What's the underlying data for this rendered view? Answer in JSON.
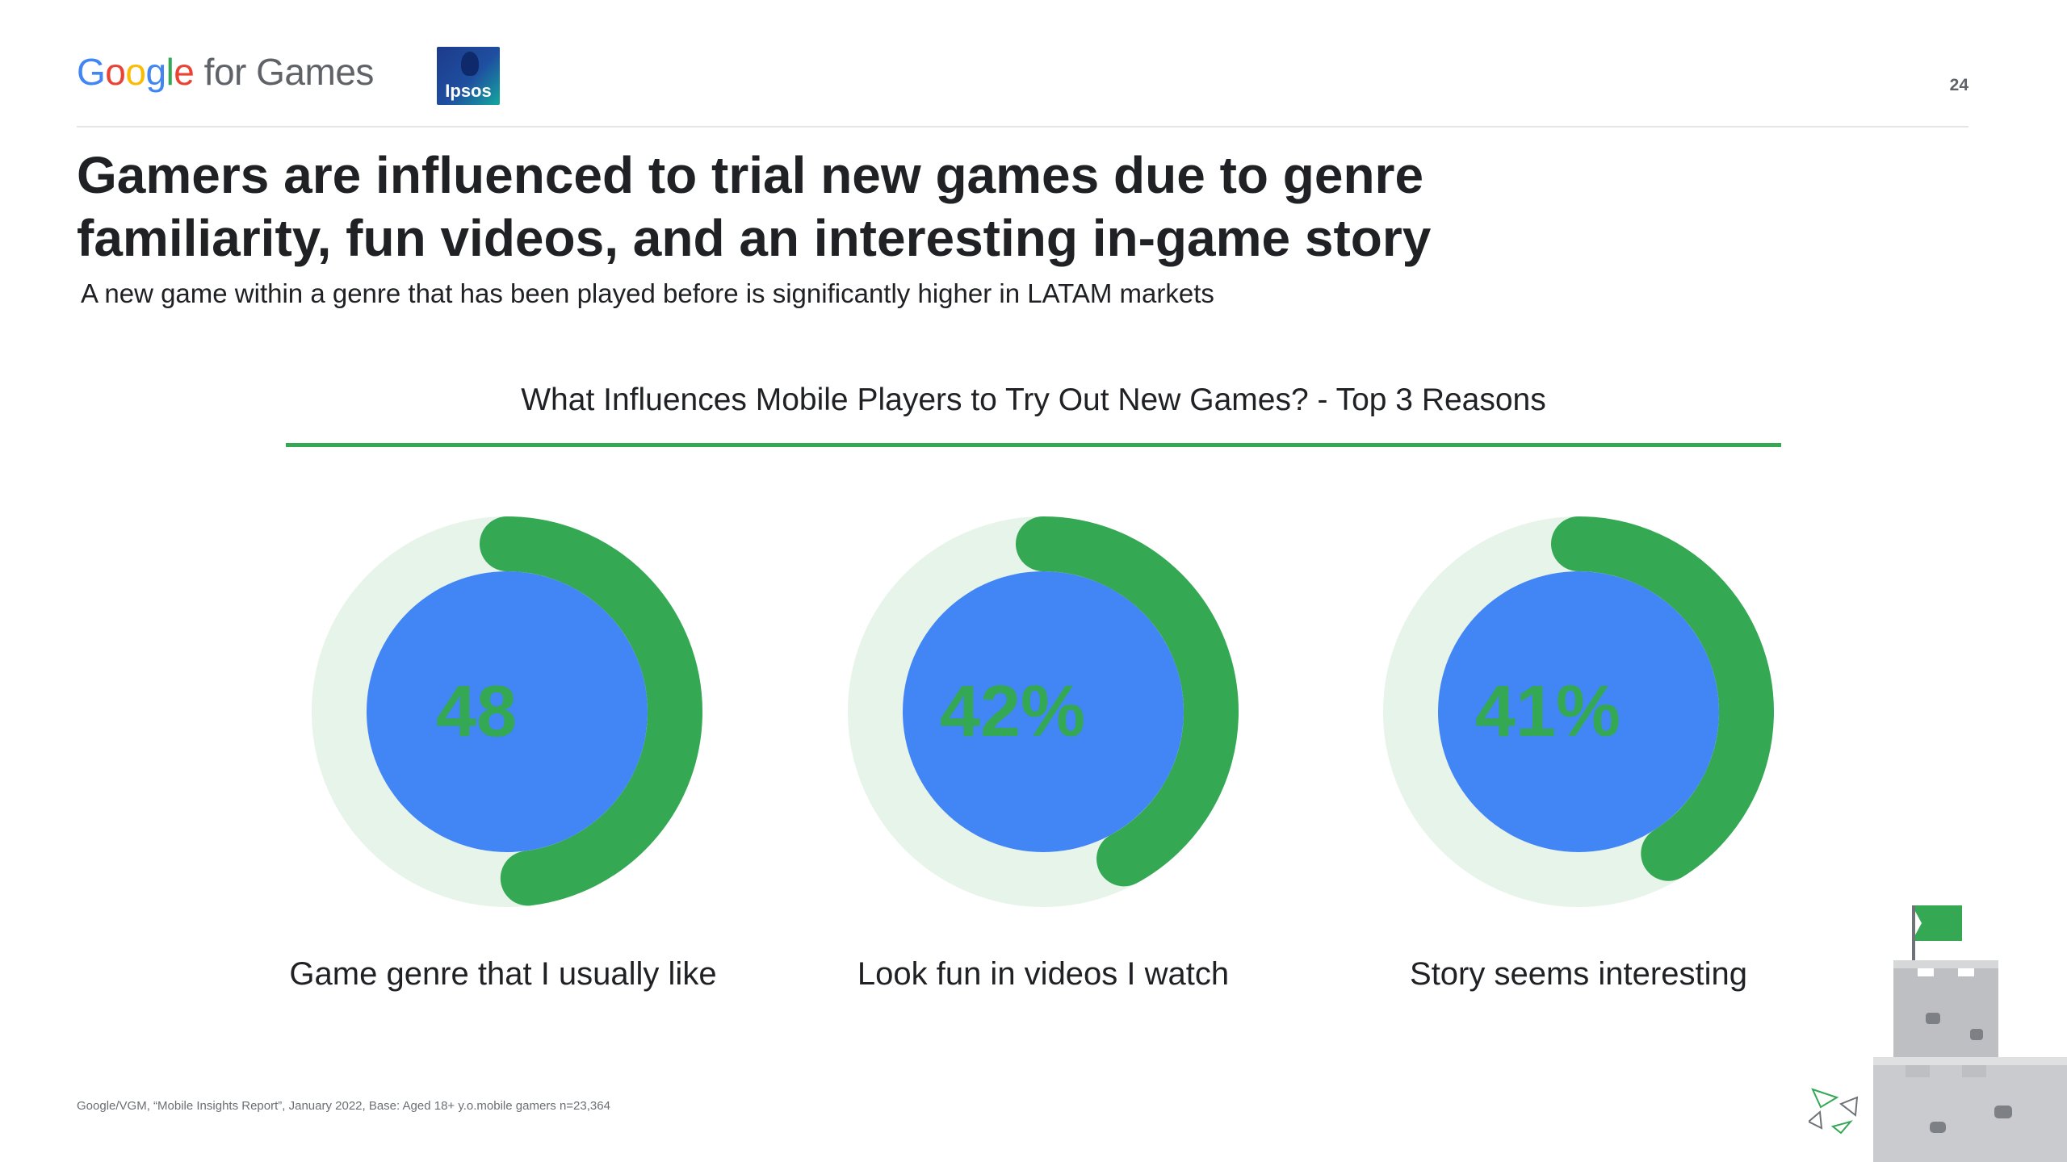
{
  "header": {
    "brand": {
      "google": [
        "G",
        "o",
        "o",
        "g",
        "l",
        "e"
      ],
      "suffix": "for Games"
    },
    "partner_logo": "Ipsos",
    "page_number": "24"
  },
  "title": "Gamers are influenced to trial new games due to genre familiarity, fun videos, and an interesting in-game story",
  "subtitle": "A new game within a genre that has been played before is significantly higher in LATAM markets",
  "chart_data": {
    "type": "donut",
    "title": "What Influences Mobile Players to Try Out New Games? - Top 3 Reasons",
    "categories": [
      "Game genre that I usually like",
      "Look fun in videos I watch",
      "Story seems interesting"
    ],
    "values": [
      48,
      42,
      41
    ],
    "value_labels": [
      "48",
      "42%",
      "41%"
    ],
    "unit": "%",
    "colors": {
      "arc": "#34A853",
      "track": "#e6f4ea",
      "center": "#4285F4",
      "value_text": "#34A853",
      "rule": "#34A853"
    }
  },
  "source": "Google/VGM, “Mobile Insights Report”, January 2022, Base: Aged 18+ y.o.mobile gamers n=23,364"
}
